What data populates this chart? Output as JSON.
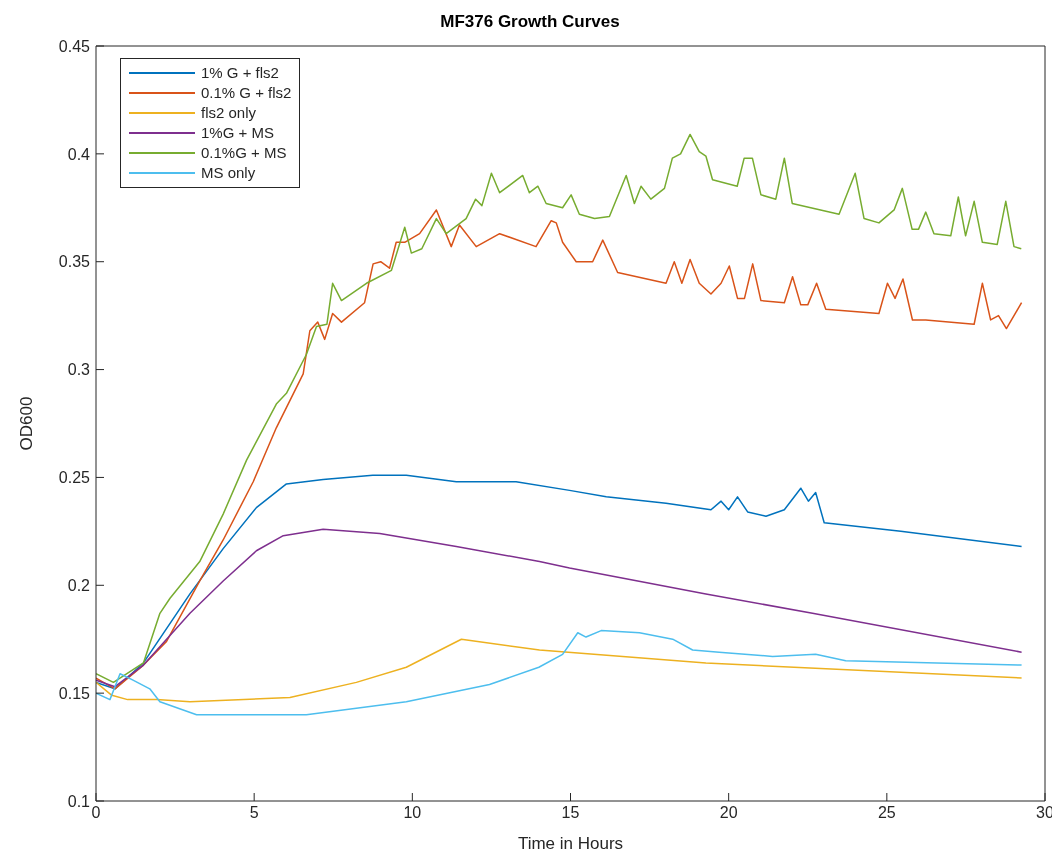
{
  "chart_data": {
    "type": "line",
    "title": "MF376 Growth Curves",
    "xlabel": "Time in Hours",
    "ylabel": "OD600",
    "xlim": [
      0,
      30
    ],
    "xticks": [
      0,
      5,
      10,
      15,
      20,
      25,
      30
    ],
    "ylim": [
      0.1,
      0.45
    ],
    "yticks": [
      0.1,
      0.15,
      0.2,
      0.25,
      0.3,
      0.35,
      0.4,
      0.45
    ],
    "grid": false,
    "legend": "top left",
    "marker": "none",
    "line_style": "solid",
    "series": [
      {
        "name": "1% G + fls2",
        "color": "#0072bd",
        "x": [
          0,
          0.6,
          1.5,
          2.97,
          4.02,
          5.07,
          6.02,
          7.18,
          8.75,
          9.81,
          11.39,
          13.28,
          14.97,
          16.13,
          18.02,
          19.44,
          19.76,
          20.0,
          20.28,
          20.6,
          21.18,
          21.76,
          22.28,
          22.52,
          22.75,
          23.02,
          25.44,
          29.26
        ],
        "values": [
          0.155,
          0.152,
          0.164,
          0.196,
          0.217,
          0.236,
          0.247,
          0.249,
          0.251,
          0.251,
          0.248,
          0.248,
          0.244,
          0.241,
          0.238,
          0.235,
          0.239,
          0.235,
          0.241,
          0.234,
          0.232,
          0.235,
          0.245,
          0.239,
          0.243,
          0.229,
          0.225,
          0.218
        ]
      },
      {
        "name": "0.1% G + fls2",
        "color": "#d95319",
        "x": [
          0,
          0.6,
          1.5,
          2.23,
          3.28,
          4.02,
          4.97,
          5.7,
          6.55,
          6.76,
          7.01,
          7.23,
          7.48,
          7.76,
          8.49,
          8.76,
          9.0,
          9.28,
          9.49,
          9.76,
          10.23,
          10.76,
          11.23,
          11.49,
          12.02,
          12.76,
          13.91,
          14.39,
          14.55,
          14.75,
          15.18,
          15.7,
          16.02,
          16.49,
          18.02,
          18.28,
          18.52,
          18.78,
          19.07,
          19.44,
          19.76,
          20.02,
          20.28,
          20.5,
          20.76,
          21.02,
          21.76,
          22.02,
          22.28,
          22.5,
          22.78,
          23.07,
          24.75,
          25.02,
          25.26,
          25.51,
          25.81,
          26.23,
          27.76,
          28.02,
          28.28,
          28.53,
          28.78,
          29.26
        ],
        "values": [
          0.157,
          0.152,
          0.163,
          0.174,
          0.202,
          0.221,
          0.248,
          0.273,
          0.298,
          0.318,
          0.322,
          0.314,
          0.326,
          0.322,
          0.331,
          0.349,
          0.35,
          0.347,
          0.359,
          0.359,
          0.363,
          0.374,
          0.357,
          0.367,
          0.357,
          0.363,
          0.357,
          0.369,
          0.368,
          0.359,
          0.35,
          0.35,
          0.36,
          0.345,
          0.34,
          0.35,
          0.34,
          0.351,
          0.34,
          0.335,
          0.34,
          0.348,
          0.333,
          0.333,
          0.349,
          0.332,
          0.331,
          0.343,
          0.33,
          0.33,
          0.34,
          0.328,
          0.326,
          0.34,
          0.333,
          0.342,
          0.323,
          0.323,
          0.321,
          0.34,
          0.323,
          0.325,
          0.319,
          0.331
        ]
      },
      {
        "name": "fls2 only",
        "color": "#edb120",
        "x": [
          0,
          0.5,
          1,
          1.92,
          2.97,
          6.13,
          8.23,
          9.81,
          11.55,
          14.02,
          19.28,
          29.26
        ],
        "values": [
          0.155,
          0.149,
          0.147,
          0.147,
          0.146,
          0.148,
          0.155,
          0.162,
          0.175,
          0.17,
          0.164,
          0.157
        ]
      },
      {
        "name": "1%G + MS",
        "color": "#7e2f8e",
        "x": [
          0,
          0.6,
          1.5,
          2.97,
          4.02,
          5.07,
          5.92,
          7.18,
          8.97,
          11.39,
          14.02,
          14.97,
          19.28,
          22.65,
          29.26
        ],
        "values": [
          0.156,
          0.153,
          0.163,
          0.187,
          0.202,
          0.216,
          0.223,
          0.226,
          0.224,
          0.218,
          0.211,
          0.208,
          0.196,
          0.187,
          0.169
        ]
      },
      {
        "name": "0.1%G + MS",
        "color": "#77ac30",
        "x": [
          0,
          0.55,
          1.5,
          2.02,
          2.34,
          3.28,
          4.02,
          4.76,
          5.7,
          6.02,
          6.65,
          6.97,
          7.3,
          7.48,
          7.76,
          8.55,
          9.34,
          9.76,
          9.97,
          10.3,
          10.76,
          11.07,
          11.7,
          12.0,
          12.2,
          12.5,
          12.76,
          13.49,
          13.7,
          13.97,
          14.23,
          14.75,
          15.02,
          15.28,
          15.76,
          16.23,
          16.76,
          17.02,
          17.23,
          17.54,
          17.97,
          18.22,
          18.48,
          18.78,
          19.07,
          19.28,
          19.49,
          20.27,
          20.49,
          20.75,
          21.02,
          21.49,
          21.76,
          22.01,
          23.49,
          24.0,
          24.28,
          24.75,
          25.23,
          25.49,
          25.8,
          26.0,
          26.23,
          26.49,
          27.02,
          27.26,
          27.49,
          27.76,
          28.02,
          28.49,
          28.76,
          29.02,
          29.25
        ],
        "values": [
          0.159,
          0.155,
          0.164,
          0.187,
          0.194,
          0.211,
          0.233,
          0.258,
          0.284,
          0.289,
          0.307,
          0.32,
          0.321,
          0.34,
          0.332,
          0.34,
          0.346,
          0.366,
          0.354,
          0.356,
          0.37,
          0.363,
          0.37,
          0.379,
          0.376,
          0.391,
          0.382,
          0.39,
          0.382,
          0.385,
          0.377,
          0.375,
          0.381,
          0.372,
          0.37,
          0.371,
          0.39,
          0.377,
          0.385,
          0.379,
          0.384,
          0.398,
          0.4,
          0.409,
          0.401,
          0.399,
          0.388,
          0.385,
          0.398,
          0.398,
          0.381,
          0.379,
          0.398,
          0.377,
          0.372,
          0.391,
          0.37,
          0.368,
          0.374,
          0.384,
          0.365,
          0.365,
          0.373,
          0.363,
          0.362,
          0.38,
          0.362,
          0.378,
          0.359,
          0.358,
          0.378,
          0.357,
          0.356
        ]
      },
      {
        "name": "MS only",
        "color": "#4dbeee",
        "x": [
          0,
          0.44,
          0.76,
          1.17,
          1.7,
          2.02,
          3.18,
          6.65,
          9.81,
          12.44,
          14.0,
          14.75,
          15.23,
          15.49,
          15.97,
          17.18,
          18.23,
          18.86,
          19.7,
          21.39,
          22.75,
          23.7,
          29.26
        ],
        "values": [
          0.15,
          0.147,
          0.159,
          0.156,
          0.152,
          0.146,
          0.14,
          0.14,
          0.146,
          0.154,
          0.162,
          0.168,
          0.178,
          0.176,
          0.179,
          0.178,
          0.175,
          0.17,
          0.169,
          0.167,
          0.168,
          0.165,
          0.163
        ]
      }
    ]
  }
}
